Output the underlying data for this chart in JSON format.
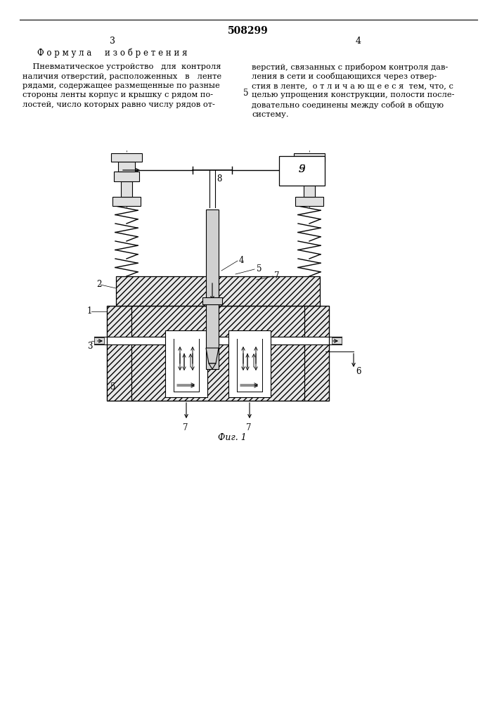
{
  "title": "508299",
  "page_left": "3",
  "page_right": "4",
  "section_title": "Ф о р м у л а     и з о б р е т е н и я",
  "text_left_lines": [
    "    Пневматическое устройство   для  контроля",
    "наличия отверстий, расположенных   в   ленте",
    "рядами, содержащее размещенные по разные",
    "стороны ленты корпус и крышку с рядом по-",
    "лостей, число которых равно числу рядов от-"
  ],
  "text_right_lines": [
    "верстий, связанных с прибором контроля дав-",
    "ления в сети и сообщающихся через отвер-",
    "стия в ленте,  о т л и ч а ю щ е е с я  тем, что, с",
    "целью упрощения конструкции, полости после-",
    "довательно соединены между собой в общую",
    "систему."
  ],
  "line_number": "5",
  "fig_label": "Фиг. 1",
  "bg_color": "#ffffff",
  "line_color": "#000000",
  "hatch_fc": "#e8e8e8",
  "bolt_fc": "#e0e0e0",
  "probe_fc": "#d0d0d0"
}
